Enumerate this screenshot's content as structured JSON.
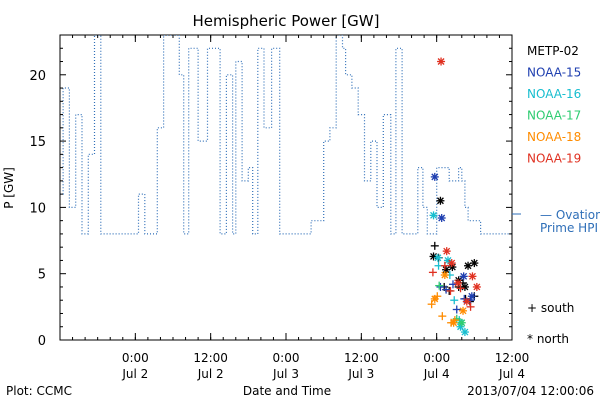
{
  "title": "Hemispheric Power [GW]",
  "footer": {
    "left": "Plot: CCMC",
    "center": "Date and Time",
    "right": "2013/07/04 12:00:06"
  },
  "ovation_label": {
    "line1": "— Ovation",
    "line2": "Prime HPI"
  },
  "marker_legend": {
    "south": "+ south",
    "north": "* north"
  },
  "colors": {
    "METP-02": "#000000",
    "NOAA-15": "#1f3fb0",
    "NOAA-16": "#17becf",
    "NOAA-17": "#2ecc71",
    "NOAA-18": "#ff8c00",
    "NOAA-19": "#e03020",
    "ovation": "#2f6fb8"
  },
  "chart_data": {
    "type": "line",
    "title": "Hemispheric Power [GW]",
    "xlabel": "Date and Time",
    "ylabel": "P [GW]",
    "x_unit": "hours from 2013/07/01 12:00",
    "xlim": [
      0,
      72
    ],
    "ylim": [
      0,
      23
    ],
    "yticks": [
      0,
      5,
      10,
      15,
      20
    ],
    "xticks": [
      {
        "x": 12,
        "line1": "0:00",
        "line2": "Jul 2"
      },
      {
        "x": 24,
        "line1": "12:00",
        "line2": "Jul 2"
      },
      {
        "x": 36,
        "line1": "0:00",
        "line2": "Jul 3"
      },
      {
        "x": 48,
        "line1": "12:00",
        "line2": "Jul 3"
      },
      {
        "x": 60,
        "line1": "0:00",
        "line2": "Jul 4"
      },
      {
        "x": 72,
        "line1": "12:00",
        "line2": "Jul 4"
      }
    ],
    "minor_tick_step": 2,
    "legend": [
      "METP-02",
      "NOAA-15",
      "NOAA-16",
      "NOAA-17",
      "NOAA-18",
      "NOAA-19"
    ],
    "series": [
      {
        "name": "Ovation Prime HPI",
        "style": "dotted-step",
        "points": [
          [
            0,
            11
          ],
          [
            0.5,
            19
          ],
          [
            1.5,
            10
          ],
          [
            2.5,
            17
          ],
          [
            3.5,
            8
          ],
          [
            4.5,
            14
          ],
          [
            5.5,
            23
          ],
          [
            6.5,
            8
          ],
          [
            11,
            8
          ],
          [
            12.5,
            11
          ],
          [
            13.5,
            8
          ],
          [
            15.5,
            16
          ],
          [
            16.5,
            23
          ],
          [
            19,
            20
          ],
          [
            19.7,
            8
          ],
          [
            20.5,
            22
          ],
          [
            22,
            15
          ],
          [
            23.5,
            22
          ],
          [
            25.5,
            8
          ],
          [
            26.5,
            20
          ],
          [
            27.5,
            8
          ],
          [
            28,
            21
          ],
          [
            29,
            12
          ],
          [
            30,
            13
          ],
          [
            30.7,
            8
          ],
          [
            31.5,
            22
          ],
          [
            32.5,
            16
          ],
          [
            33.7,
            22
          ],
          [
            35,
            8
          ],
          [
            40,
            9
          ],
          [
            41.5,
            9
          ],
          [
            42,
            15
          ],
          [
            43,
            16
          ],
          [
            44,
            23
          ],
          [
            45,
            22
          ],
          [
            45.5,
            20
          ],
          [
            46.5,
            19
          ],
          [
            47.5,
            17
          ],
          [
            48.5,
            12
          ],
          [
            49.5,
            15
          ],
          [
            50.5,
            10
          ],
          [
            51.5,
            17
          ],
          [
            52.7,
            8
          ],
          [
            53.5,
            22
          ],
          [
            54.5,
            8
          ],
          [
            57,
            13
          ],
          [
            57.8,
            10
          ],
          [
            58.5,
            8
          ],
          [
            60,
            13
          ],
          [
            62,
            12
          ],
          [
            63.5,
            13
          ],
          [
            64,
            12
          ],
          [
            64.5,
            10
          ],
          [
            65,
            9
          ],
          [
            66,
            9
          ],
          [
            67,
            8
          ],
          [
            69,
            8
          ],
          [
            72,
            8
          ]
        ]
      },
      {
        "name": "METP-02",
        "south": [
          [
            59.7,
            7.1
          ],
          [
            60.3,
            6.2
          ],
          [
            61.2,
            4.0
          ],
          [
            62,
            3.7
          ],
          [
            63.5,
            4.0
          ],
          [
            64.2,
            4.3
          ],
          [
            64.6,
            3.1
          ],
          [
            65.3,
            2.9
          ],
          [
            66,
            3.3
          ]
        ],
        "north": [
          [
            59.5,
            6.3
          ],
          [
            60.6,
            10.5
          ],
          [
            61.5,
            5.3
          ],
          [
            62.5,
            5.5
          ],
          [
            63.5,
            4.5
          ],
          [
            64.5,
            4.0
          ],
          [
            65,
            5.6
          ],
          [
            66,
            5.8
          ]
        ]
      },
      {
        "name": "NOAA-15",
        "south": [
          [
            60.6,
            4.0
          ],
          [
            61.5,
            3.8
          ],
          [
            62.6,
            4.2
          ],
          [
            63.2,
            2.3
          ],
          [
            64.4,
            3.1
          ],
          [
            65.4,
            3.0
          ]
        ],
        "north": [
          [
            59.7,
            12.3
          ],
          [
            60.8,
            9.2
          ],
          [
            64.3,
            4.8
          ],
          [
            65.6,
            3.3
          ]
        ]
      },
      {
        "name": "NOAA-16",
        "south": [
          [
            60.3,
            5.6
          ],
          [
            62.1,
            4.9
          ],
          [
            62.8,
            3.0
          ],
          [
            63.6,
            1.5
          ]
        ],
        "north": [
          [
            59.5,
            9.4
          ],
          [
            60.2,
            6.2
          ],
          [
            61.8,
            6.0
          ],
          [
            63.8,
            1.0
          ],
          [
            64.5,
            0.6
          ]
        ]
      },
      {
        "name": "NOAA-17",
        "south": [
          [
            60.4,
            4.1
          ],
          [
            63.2,
            1.6
          ]
        ],
        "north": [
          [
            64.0,
            1.3
          ]
        ]
      },
      {
        "name": "NOAA-18",
        "south": [
          [
            59.2,
            2.7
          ],
          [
            60.1,
            3.3
          ],
          [
            60.9,
            1.8
          ],
          [
            62.3,
            1.3
          ],
          [
            62.9,
            1.5
          ]
        ],
        "north": [
          [
            59.7,
            3.1
          ],
          [
            61.3,
            4.9
          ],
          [
            62.7,
            1.3
          ],
          [
            64.2,
            2.2
          ]
        ]
      },
      {
        "name": "NOAA-19",
        "south": [
          [
            59.4,
            5.1
          ],
          [
            61.3,
            5.6
          ],
          [
            62.2,
            3.7
          ],
          [
            63.8,
            3.9
          ],
          [
            65.4,
            2.5
          ]
        ],
        "north": [
          [
            60.7,
            21.0
          ],
          [
            61.6,
            6.7
          ],
          [
            62.4,
            5.8
          ],
          [
            63.4,
            4.3
          ],
          [
            64.8,
            2.9
          ],
          [
            65.7,
            4.8
          ],
          [
            66.4,
            4.0
          ]
        ]
      }
    ]
  }
}
